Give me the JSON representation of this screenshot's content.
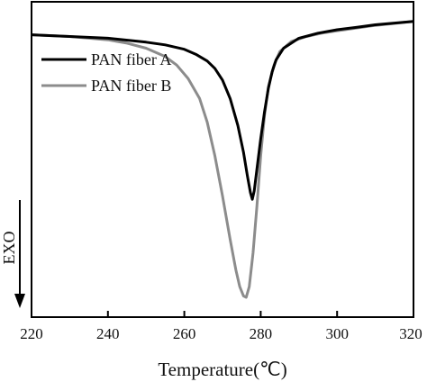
{
  "chart_data": {
    "type": "line",
    "xlabel": "Temperature(℃)",
    "ylabel": "EXO",
    "xlim": [
      220,
      320
    ],
    "x_ticks": [
      "220",
      "240",
      "260",
      "280",
      "300",
      "320"
    ],
    "y_ticks_shown": false,
    "grid": false,
    "legend": "top-left",
    "series": [
      {
        "name": "PAN fiber A",
        "color": "#000000",
        "points": [
          [
            220,
            0.05
          ],
          [
            230,
            0.055
          ],
          [
            240,
            0.06
          ],
          [
            250,
            0.072
          ],
          [
            255,
            0.08
          ],
          [
            260,
            0.093
          ],
          [
            263,
            0.108
          ],
          [
            266,
            0.128
          ],
          [
            268,
            0.15
          ],
          [
            270,
            0.185
          ],
          [
            272,
            0.24
          ],
          [
            274,
            0.32
          ],
          [
            275.5,
            0.4
          ],
          [
            276.5,
            0.47
          ],
          [
            277.3,
            0.52
          ],
          [
            277.8,
            0.54
          ],
          [
            278.3,
            0.515
          ],
          [
            279,
            0.45
          ],
          [
            280,
            0.36
          ],
          [
            281,
            0.28
          ],
          [
            282,
            0.21
          ],
          [
            283,
            0.16
          ],
          [
            284,
            0.125
          ],
          [
            286,
            0.09
          ],
          [
            290,
            0.06
          ],
          [
            295,
            0.045
          ],
          [
            300,
            0.035
          ],
          [
            305,
            0.028
          ],
          [
            310,
            0.02
          ],
          [
            315,
            0.015
          ],
          [
            320,
            0.01
          ]
        ]
      },
      {
        "name": "PAN fiber B",
        "color": "#8c8c8c",
        "points": [
          [
            220,
            0.05
          ],
          [
            230,
            0.055
          ],
          [
            240,
            0.065
          ],
          [
            245,
            0.075
          ],
          [
            250,
            0.09
          ],
          [
            255,
            0.115
          ],
          [
            258,
            0.14
          ],
          [
            261,
            0.18
          ],
          [
            264,
            0.24
          ],
          [
            266,
            0.31
          ],
          [
            268,
            0.41
          ],
          [
            270,
            0.53
          ],
          [
            272,
            0.66
          ],
          [
            273.5,
            0.75
          ],
          [
            274.5,
            0.8
          ],
          [
            275.5,
            0.828
          ],
          [
            276.2,
            0.832
          ],
          [
            277,
            0.8
          ],
          [
            278,
            0.7
          ],
          [
            279,
            0.56
          ],
          [
            280,
            0.41
          ],
          [
            281,
            0.29
          ],
          [
            282,
            0.205
          ],
          [
            283.5,
            0.14
          ],
          [
            285,
            0.1
          ],
          [
            288,
            0.07
          ],
          [
            292,
            0.055
          ],
          [
            296,
            0.045
          ],
          [
            300,
            0.038
          ],
          [
            305,
            0.03
          ],
          [
            310,
            0.022
          ],
          [
            315,
            0.016
          ],
          [
            320,
            0.01
          ]
        ]
      }
    ]
  }
}
